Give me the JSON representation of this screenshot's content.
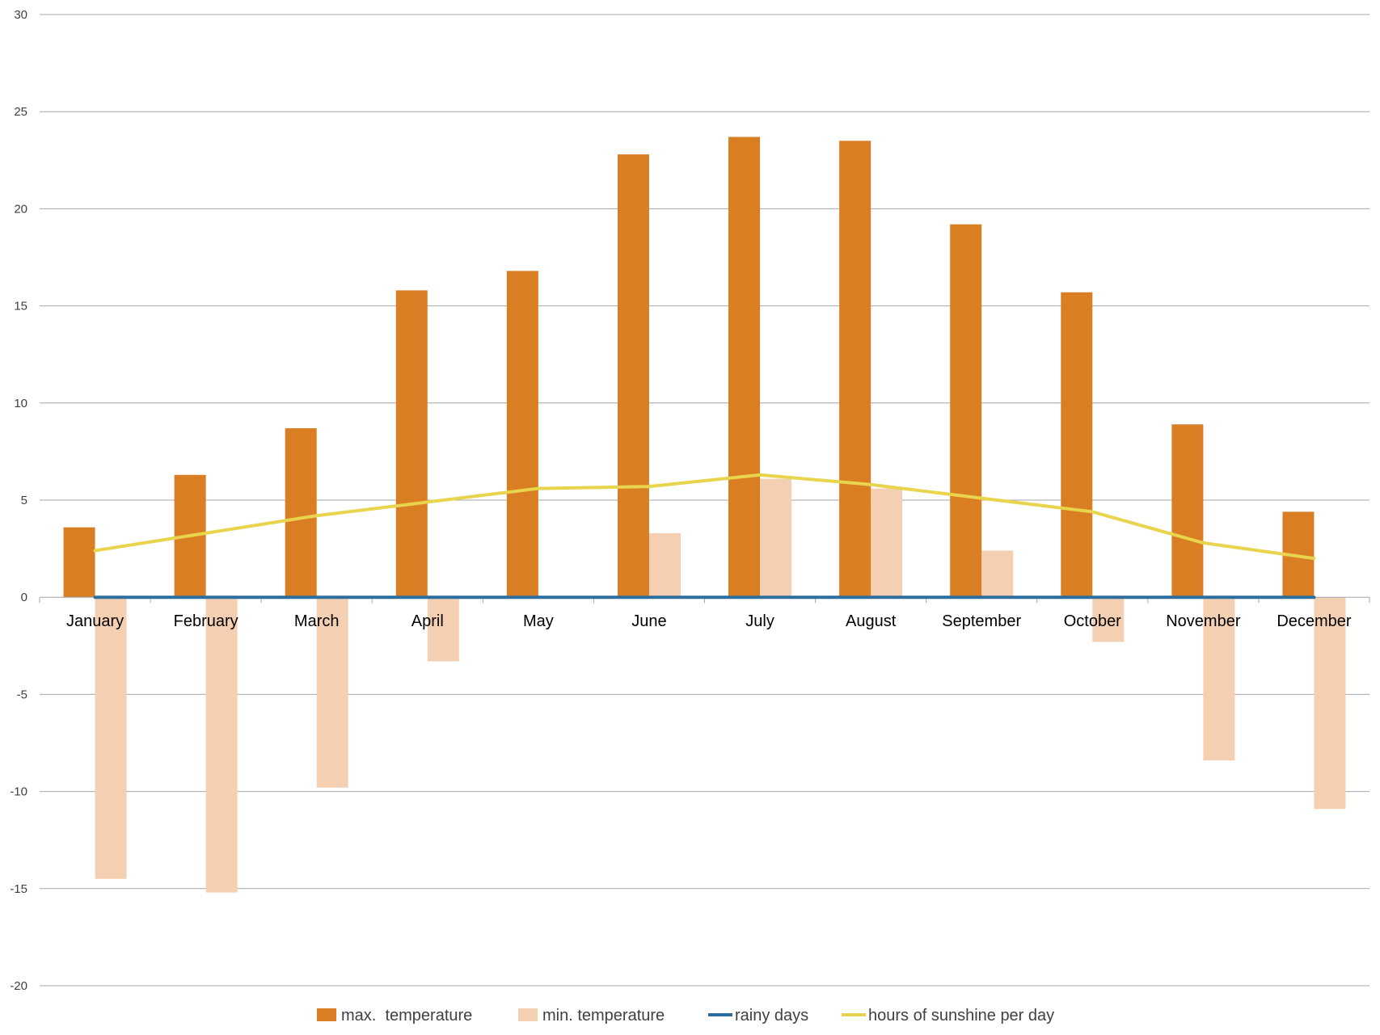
{
  "chart_data": {
    "type": "bar",
    "title": "",
    "xlabel": "",
    "ylabel": "",
    "ylim": [
      -20,
      30
    ],
    "yticks": [
      30,
      25,
      20,
      15,
      10,
      5,
      0,
      -5,
      -10,
      -15,
      -20
    ],
    "grid": true,
    "legend_position": "bottom",
    "categories": [
      "January",
      "February",
      "March",
      "April",
      "May",
      "June",
      "July",
      "August",
      "September",
      "October",
      "November",
      "December"
    ],
    "series": [
      {
        "name": "max.  temperature",
        "kind": "bar",
        "color": "#D97E22",
        "values": [
          3.6,
          6.3,
          8.7,
          15.8,
          16.8,
          22.8,
          23.7,
          23.5,
          19.2,
          15.7,
          8.9,
          4.4
        ]
      },
      {
        "name": "min. temperature",
        "kind": "bar",
        "color": "#F5CFB2",
        "values": [
          -14.5,
          -15.2,
          -9.8,
          -3.3,
          0,
          3.3,
          6.1,
          5.6,
          2.4,
          -2.3,
          -8.4,
          -10.9
        ]
      },
      {
        "name": "rainy days",
        "kind": "line",
        "color": "#2E6E9E",
        "values": [
          0,
          0,
          0,
          0,
          0,
          0,
          0,
          0,
          0,
          0,
          0,
          0
        ]
      },
      {
        "name": "hours of sunshine per day",
        "kind": "line",
        "color": "#E8D44D",
        "values": [
          2.4,
          3.3,
          4.2,
          4.9,
          5.6,
          5.7,
          6.3,
          5.8,
          5.1,
          4.4,
          2.8,
          2.0
        ]
      }
    ]
  }
}
